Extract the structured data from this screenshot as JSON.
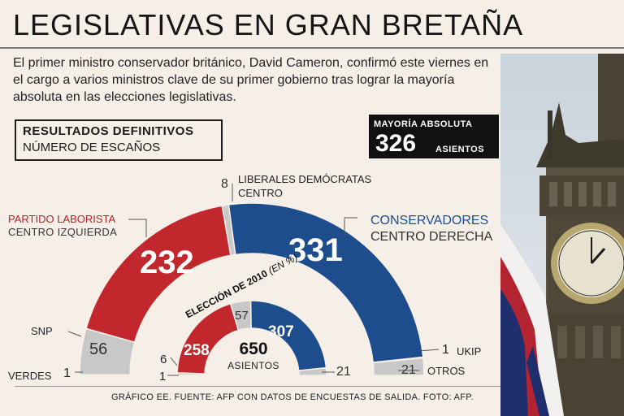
{
  "title": "LEGISLATIVAS EN GRAN BRETAÑA",
  "lead": "El primer ministro conservador británico, David Cameron, confirmó este viernes en el cargo a varios ministros clave de su primer gobierno tras lograr la mayoría absoluta en las elecciones legislativas.",
  "results_box": {
    "line1": "RESULTADOS DEFINITIVOS",
    "line2": "NÚMERO DE ESCAÑOS"
  },
  "majority_box": {
    "label": "MAYORÍA ABSOLUTA",
    "value": "326",
    "unit": "ASIENTOS"
  },
  "footer": "GRÁFICO EE. FUENTE: AFP CON DATOS DE ENCUESTAS DE SALIDA. FOTO: AFP.",
  "colors": {
    "labour": "#c1272d",
    "conservative": "#1d4d8c",
    "other": "#c8c8c8",
    "background": "#f6efe7"
  },
  "photo": {
    "subject": "big-ben-clock-tower-with-union-jack"
  },
  "chart_data": [
    {
      "type": "pie",
      "layout": "half-donut",
      "title": "RESULTADOS DEFINITIVOS",
      "subtitle": "NÚMERO DE ESCAÑOS",
      "total": 650,
      "slices": [
        {
          "name": "VERDES",
          "value": 1,
          "display": "1",
          "color": "#c8c8c8"
        },
        {
          "name": "SNP",
          "value": 56,
          "display": "56",
          "color": "#c8c8c8"
        },
        {
          "name": "PARTIDO LABORISTA",
          "sublabel": "CENTRO IZQUIERDA",
          "value": 232,
          "display": "232",
          "color": "#c1272d"
        },
        {
          "name": "LIBERALES DEMÓCRATAS",
          "sublabel": "CENTRO",
          "value": 8,
          "display": "8",
          "color": "#c8c8c8"
        },
        {
          "name": "CONSERVADORES",
          "sublabel": "CENTRO DERECHA",
          "value": 331,
          "display": "331",
          "color": "#1d4d8c"
        },
        {
          "name": "UKIP",
          "value": 1,
          "display": "1",
          "color": "#c8c8c8"
        },
        {
          "name": "OTROS",
          "value": 21,
          "display": "21",
          "color": "#c8c8c8"
        }
      ]
    },
    {
      "type": "pie",
      "layout": "half-donut",
      "title": "ELECCIÓN DE 2010",
      "subtitle": "(EN %)",
      "total": 650,
      "total_label": "650",
      "total_unit": "ASIENTOS",
      "slices": [
        {
          "name": "Verdes",
          "value": 1,
          "display": "1",
          "color": "#c8c8c8"
        },
        {
          "name": "SNP",
          "value": 6,
          "display": "6",
          "color": "#c8c8c8"
        },
        {
          "name": "Laboristas",
          "value": 258,
          "display": "258",
          "color": "#c1272d"
        },
        {
          "name": "Liberales Demócratas",
          "value": 57,
          "display": "57",
          "color": "#c8c8c8"
        },
        {
          "name": "Conservadores",
          "value": 307,
          "display": "307",
          "color": "#1d4d8c"
        },
        {
          "name": "Otros",
          "value": 21,
          "display": "21",
          "color": "#c8c8c8"
        }
      ]
    }
  ]
}
